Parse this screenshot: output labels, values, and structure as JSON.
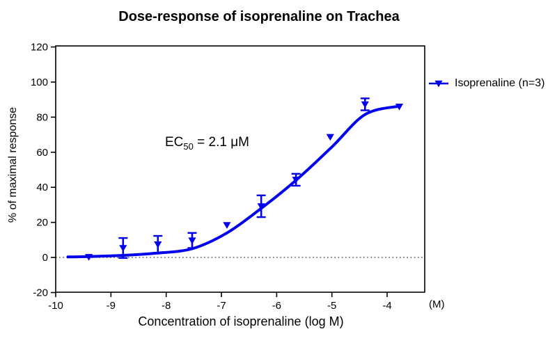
{
  "figure": {
    "background": "#FFFFFF"
  },
  "chart_data": {
    "type": "scatter",
    "title": "Dose-response of isoprenaline on Trachea",
    "xlabel": "Concentration of isoprenaline (log M)",
    "x_unit_label": "(M)",
    "ylabel": "% of maximal response",
    "x_ticks": [
      -10,
      -9,
      -8,
      -7,
      -6,
      -5,
      -4
    ],
    "x_tick_labels": [
      "-10",
      "-9",
      "-8",
      "-7",
      "-6",
      "-5",
      "-4"
    ],
    "y_ticks": [
      120,
      100,
      80,
      60,
      40,
      20,
      0,
      -20
    ],
    "y_tick_labels": [
      "120",
      "100",
      "80",
      "60",
      "40",
      "20",
      "0",
      "-20"
    ],
    "x_axis": {
      "min": -10,
      "max": -3.32,
      "scale": "log10(concentration)"
    },
    "y_axis": {
      "min": -19.8,
      "max": 120.6
    },
    "grid": "off",
    "series": [
      {
        "name": "Isoprenaline (n=3)",
        "color": "#0000EE",
        "marker": "triangle-down",
        "points": [
          {
            "x": -9.4,
            "y": 0.3,
            "sem": 0
          },
          {
            "x": -8.78,
            "y": 5.4,
            "sem": 5.7
          },
          {
            "x": -8.15,
            "y": 7.5,
            "sem": 4.8
          },
          {
            "x": -7.53,
            "y": 9.7,
            "sem": 4.3
          },
          {
            "x": -6.9,
            "y": 18.5,
            "sem": 0
          },
          {
            "x": -6.28,
            "y": 29.2,
            "sem": 6.2
          },
          {
            "x": -5.65,
            "y": 44.3,
            "sem": 3.4
          },
          {
            "x": -5.03,
            "y": 68.7,
            "sem": 0
          },
          {
            "x": -4.4,
            "y": 87.3,
            "sem": 3.4
          },
          {
            "x": -3.78,
            "y": 86.0,
            "sem": 0
          }
        ]
      }
    ],
    "fit_curve": {
      "description": "sigmoidal dose-response fit",
      "color": "#0000EE",
      "points": [
        [
          -9.78,
          0.3
        ],
        [
          -9.4,
          0.5
        ],
        [
          -8.8,
          1.2
        ],
        [
          -8.2,
          2.4
        ],
        [
          -7.53,
          5.0
        ],
        [
          -6.9,
          14.0
        ],
        [
          -6.28,
          28.0
        ],
        [
          -5.65,
          44.0
        ],
        [
          -5.0,
          63.0
        ],
        [
          -4.4,
          81.5
        ],
        [
          -3.78,
          86.3
        ]
      ]
    },
    "zero_line": {
      "y": 0,
      "style": "dotted",
      "color": "#444444"
    },
    "annotation": {
      "prefix": "EC",
      "sub": "50",
      "rest": " = 2.1 μM"
    },
    "legend": {
      "label": "Isoprenaline (n=3)",
      "position": "right",
      "color": "#0000EE"
    },
    "axis_color": "#000000"
  }
}
